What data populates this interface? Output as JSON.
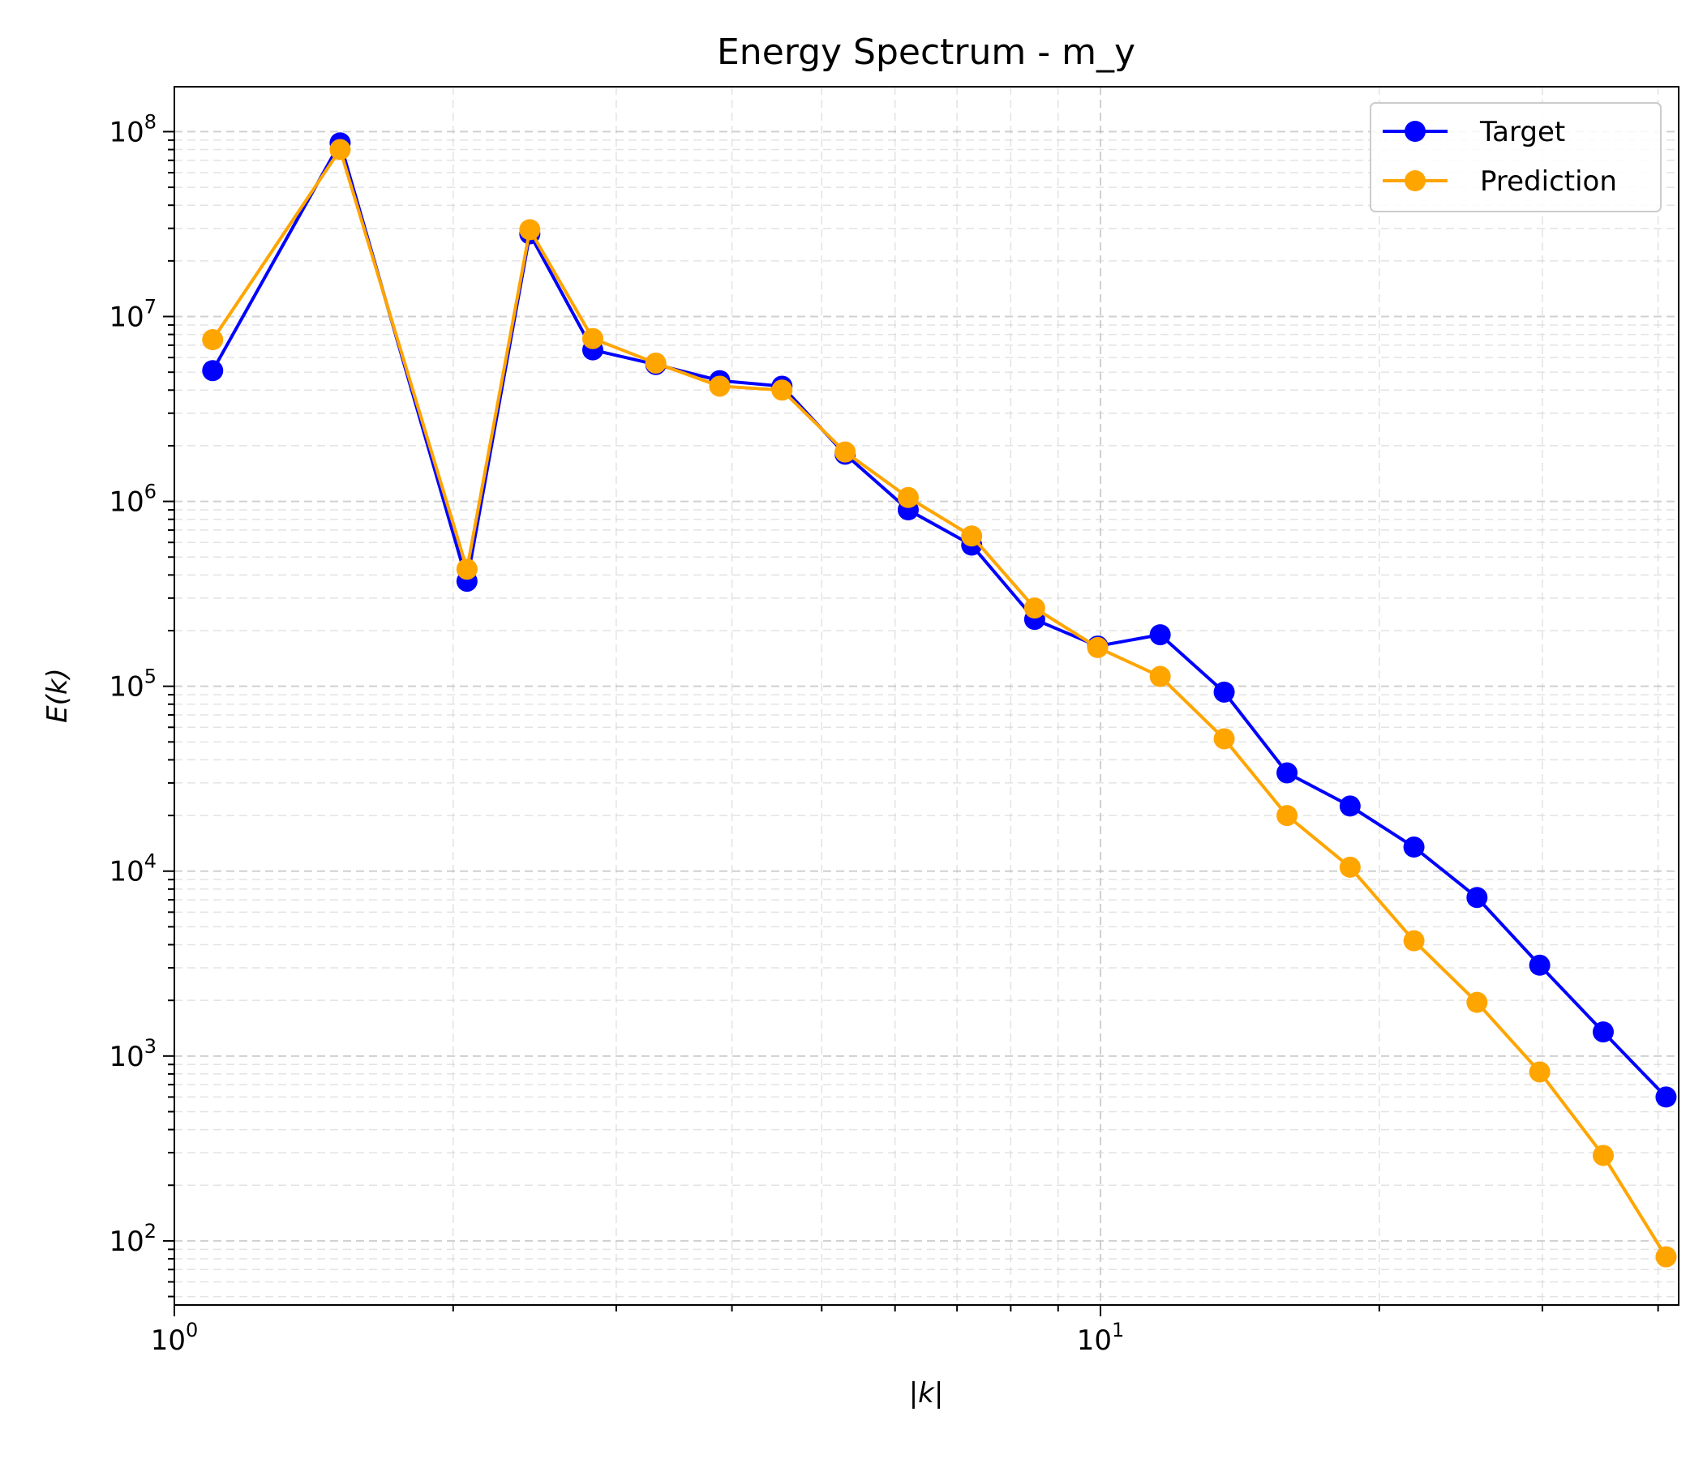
{
  "chart_data": {
    "type": "line",
    "title": "Energy Spectrum - m_y",
    "xlabel": "|k|",
    "ylabel": "E(k)",
    "xscale": "log",
    "yscale": "log",
    "xlim": [
      1,
      42.1
    ],
    "ylim": [
      45,
      175000000.0
    ],
    "grid": true,
    "legend_position": "top-right",
    "x_tick_labels": [
      {
        "value": 1,
        "base": "10",
        "exp": "0"
      },
      {
        "value": 10,
        "base": "10",
        "exp": "1"
      }
    ],
    "y_tick_labels": [
      {
        "value": 100,
        "base": "10",
        "exp": "2"
      },
      {
        "value": 1000,
        "base": "10",
        "exp": "3"
      },
      {
        "value": 10000,
        "base": "10",
        "exp": "4"
      },
      {
        "value": 100000,
        "base": "10",
        "exp": "5"
      },
      {
        "value": 1000000,
        "base": "10",
        "exp": "6"
      },
      {
        "value": 10000000,
        "base": "10",
        "exp": "7"
      },
      {
        "value": 100000000,
        "base": "10",
        "exp": "8"
      }
    ],
    "x": [
      1.1,
      1.51,
      2.07,
      2.42,
      2.83,
      3.31,
      3.88,
      4.53,
      5.3,
      6.2,
      7.26,
      8.49,
      9.93,
      11.6,
      13.6,
      15.9,
      18.6,
      21.8,
      25.5,
      29.8,
      34.9,
      40.8
    ],
    "series": [
      {
        "name": "Target",
        "color": "#0000ff",
        "values": [
          5100000,
          87000000,
          370000,
          28000000,
          6600000,
          5500000,
          4500000,
          4200000,
          1800000,
          900000,
          580000,
          230000,
          165000,
          190000,
          93000,
          34000,
          22500,
          13500,
          7200,
          3100,
          1350,
          600
        ]
      },
      {
        "name": "Prediction",
        "color": "#ffa500",
        "values": [
          7500000,
          80000000,
          430000,
          29500000,
          7600000,
          5600000,
          4200000,
          4000000,
          1850000,
          1050000,
          650000,
          265000,
          162000,
          113000,
          52000,
          20000,
          10500,
          4200,
          1950,
          820,
          290,
          82
        ]
      }
    ]
  }
}
